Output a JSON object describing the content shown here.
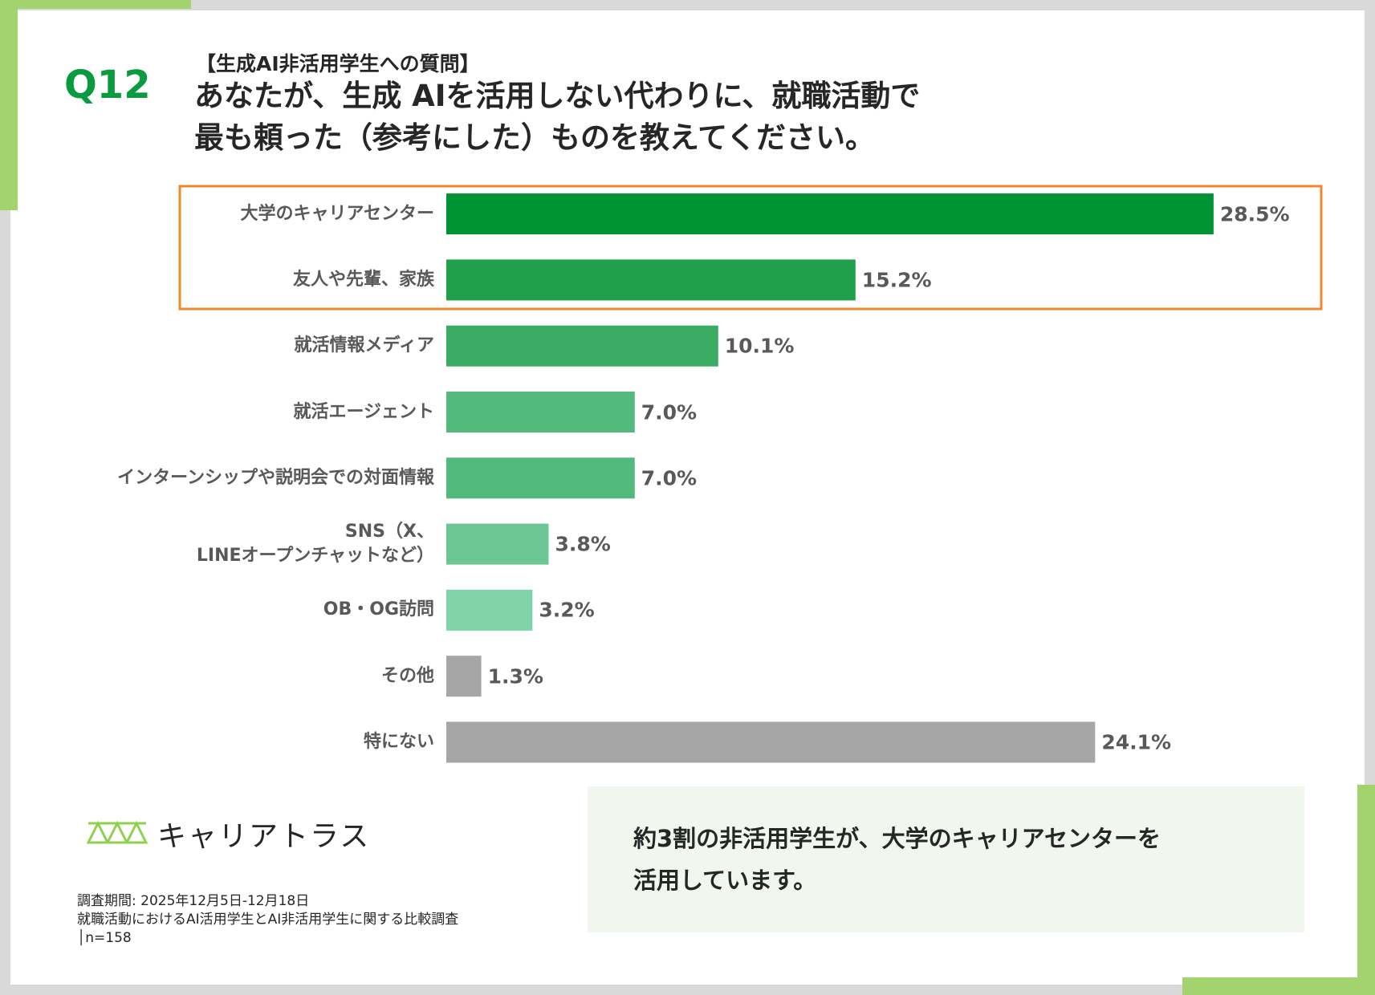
{
  "header": {
    "question_no": "Q12",
    "subtitle": "【生成AI非活用学生への質問】",
    "title": "あなたが、生成 AIを活用しない代わりに、就職活動で\n最も頼った（参考にした）ものを教えてください。"
  },
  "chart_data": {
    "type": "bar",
    "orientation": "horizontal",
    "categories": [
      "大学のキャリアセンター",
      "友人や先輩、家族",
      "就活情報メディア",
      "就活エージェント",
      "インターンシップや説明会での対面情報",
      "SNS（X、\nLINEオープンチャットなど）",
      "OB・OG訪問",
      "その他",
      "特にない"
    ],
    "values": [
      28.5,
      15.2,
      10.1,
      7.0,
      7.0,
      3.8,
      3.2,
      1.3,
      24.1
    ],
    "value_labels": [
      "28.5%",
      "15.2%",
      "10.1%",
      "7.0%",
      "7.0%",
      "3.8%",
      "3.2%",
      "1.3%",
      "24.1%"
    ],
    "colors": [
      "#009335",
      "#21a04b",
      "#3aab63",
      "#52b97c",
      "#52b97c",
      "#6cc693",
      "#80d4a8",
      "#a6a6a6",
      "#a6a6a6"
    ],
    "highlight_color": "#f0872b"
  },
  "logo": "キャリアトラス",
  "footnote": [
    "調査期間: 2025年12月5日-12月18日",
    "就職活動におけるAI活用学生とAI非活用学生に関する比較調査",
    "│n=158"
  ],
  "callout": "約3割の非活用学生が、大学のキャリアセンターを\n活用しています。"
}
